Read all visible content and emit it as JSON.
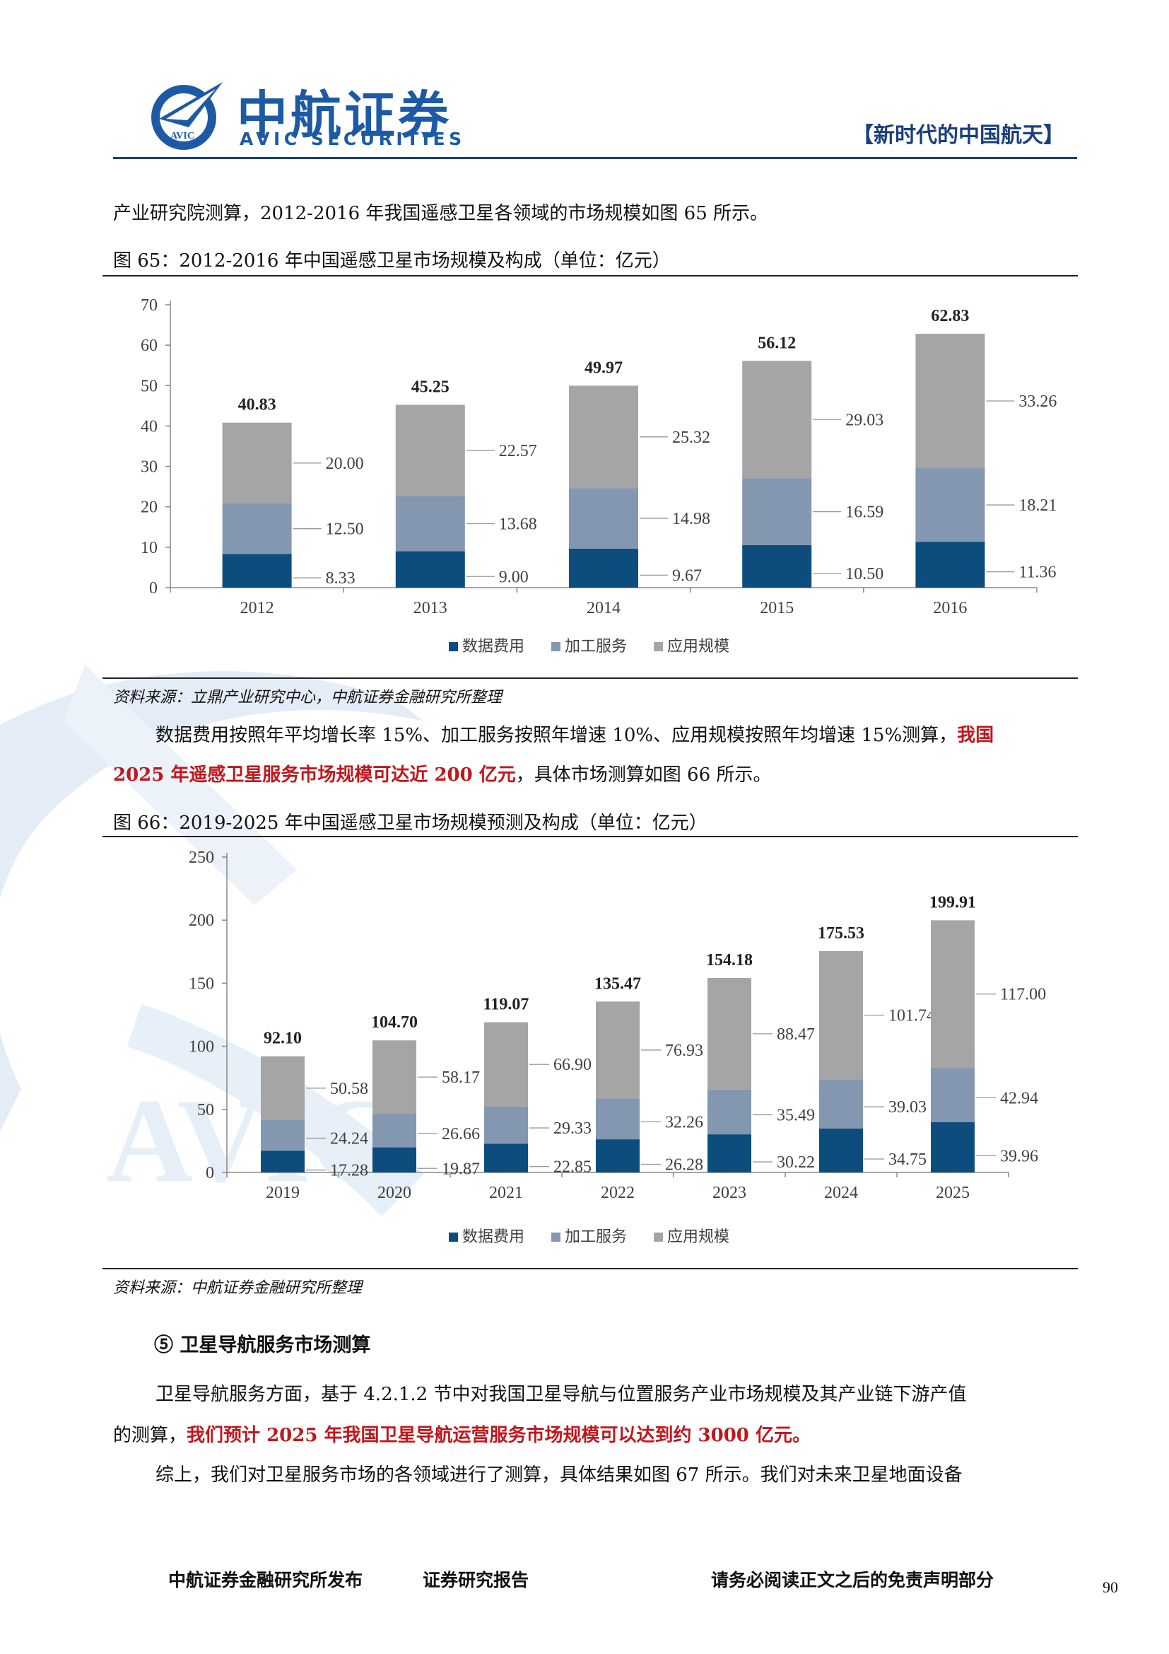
{
  "header": {
    "logo_cn": "中航证券",
    "logo_en": "AVIC SECURITIES",
    "logo_badge": "AVIC",
    "slogan": "【新时代的中国航天】"
  },
  "watermark": {
    "text": "AVIC"
  },
  "paragraphs": {
    "p1": "产业研究院测算，2012-2016 年我国遥感卫星各领域的市场规模如图 65 所示。",
    "p2_a": "数据费用按照年平均增长率 15%、加工服务按照年增速 10%、应用规模按照年均增速 15%测算，",
    "p2_b": "我国",
    "p2_c": "2025 年遥感卫星服务市场规模可达近 200 亿元",
    "p2_d": "，具体市场测算如图 66 所示。",
    "section5": "⑤  卫星导航服务市场测算",
    "p3_a": "卫星导航服务方面，基于 4.2.1.2 节中对我国卫星导航与位置服务产业市场规模及其产业链下游产值",
    "p3_b": "的测算，",
    "p3_c": "我们预计 2025 年我国卫星导航运营服务市场规模可以达到约 3000 亿元。",
    "p4": "综上，我们对卫星服务市场的各领域进行了测算，具体结果如图 67 所示。我们对未来卫星地面设备"
  },
  "figures": {
    "fig65_title": "图 65：2012-2016 年中国遥感卫星市场规模及构成（单位：亿元）",
    "fig65_source": "资料来源：立鼎产业研究中心，中航证券金融研究所整理",
    "fig66_title": "图 66：2019-2025 年中国遥感卫星市场规模预测及构成（单位：亿元）",
    "fig66_source": "资料来源：中航证券金融研究所整理"
  },
  "colors": {
    "data_fee": "#0d4d7e",
    "processing": "#8497b0",
    "application": "#a5a5a5",
    "brand_blue": "#1d5aa6",
    "highlight_red": "#c0171c"
  },
  "chart_data": [
    {
      "type": "bar",
      "stacked": true,
      "categories": [
        "2012",
        "2013",
        "2014",
        "2015",
        "2016"
      ],
      "series": [
        {
          "name": "数据费用",
          "values": [
            8.33,
            9.0,
            9.67,
            10.5,
            11.36
          ],
          "labels": [
            "8.33",
            "9.00",
            "9.67",
            "10.50",
            "11.36"
          ]
        },
        {
          "name": "加工服务",
          "values": [
            12.5,
            13.68,
            14.98,
            16.59,
            18.21
          ],
          "labels": [
            "12.50",
            "13.68",
            "14.98",
            "16.59",
            "18.21"
          ]
        },
        {
          "name": "应用规模",
          "values": [
            20.0,
            22.57,
            25.32,
            29.03,
            33.26
          ],
          "labels": [
            "20.00",
            "22.57",
            "25.32",
            "29.03",
            "33.26"
          ]
        }
      ],
      "totals": [
        "40.83",
        "45.25",
        "49.97",
        "56.12",
        "62.83"
      ],
      "ylim": [
        0,
        70
      ],
      "yticks": [
        "0",
        "10",
        "20",
        "30",
        "40",
        "50",
        "60",
        "70"
      ],
      "legend_position": "bottom"
    },
    {
      "type": "bar",
      "stacked": true,
      "categories": [
        "2019",
        "2020",
        "2021",
        "2022",
        "2023",
        "2024",
        "2025"
      ],
      "series": [
        {
          "name": "数据费用",
          "values": [
            17.28,
            19.87,
            22.85,
            26.28,
            30.22,
            34.75,
            39.96
          ],
          "labels": [
            "17.28",
            "19.87",
            "22.85",
            "26.28",
            "30.22",
            "34.75",
            "39.96"
          ]
        },
        {
          "name": "加工服务",
          "values": [
            24.24,
            26.66,
            29.33,
            32.26,
            35.49,
            39.03,
            42.94
          ],
          "labels": [
            "24.24",
            "26.66",
            "29.33",
            "32.26",
            "35.49",
            "39.03",
            "42.94"
          ]
        },
        {
          "name": "应用规模",
          "values": [
            50.58,
            58.17,
            66.9,
            76.93,
            88.47,
            101.74,
            117.0
          ],
          "labels": [
            "50.58",
            "58.17",
            "66.90",
            "76.93",
            "88.47",
            "101.74",
            "117.00"
          ]
        }
      ],
      "totals": [
        "92.10",
        "104.70",
        "119.07",
        "135.47",
        "154.18",
        "175.53",
        "199.91"
      ],
      "ylim": [
        0,
        250
      ],
      "yticks": [
        "0",
        "50",
        "100",
        "150",
        "200",
        "250"
      ],
      "legend_position": "bottom"
    }
  ],
  "footer": {
    "left": "中航证券金融研究所发布",
    "middle": "证券研究报告",
    "right": "请务必阅读正文之后的免责声明部分",
    "page": "90"
  }
}
